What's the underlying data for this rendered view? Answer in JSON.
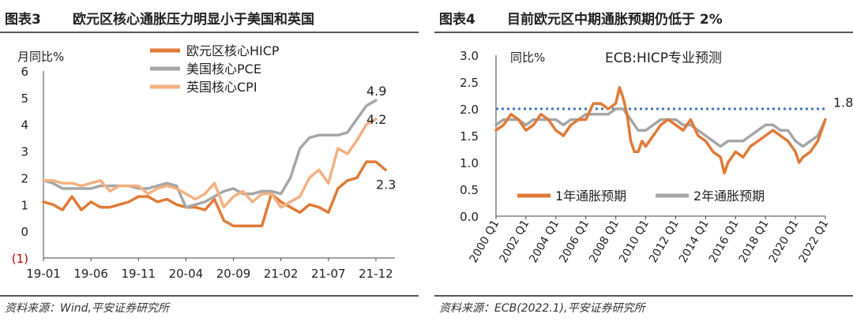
{
  "figures": [
    {
      "number": "图表3",
      "title": "欧元区核心通胀压力明显小于美国和英国",
      "source": "资料来源：Wind,平安证券研究所"
    },
    {
      "number": "图表4",
      "title": "目前欧元区中期通胀预期仍低于 2%",
      "source": "资料来源：ECB(2022.1),平安证券研究所"
    }
  ],
  "chart_data": [
    {
      "type": "line",
      "title": "",
      "ylabel": "月同比%",
      "ylim": [
        -1,
        6
      ],
      "yticks": [
        "(1)",
        "0",
        "1",
        "2",
        "3",
        "4",
        "5",
        "6"
      ],
      "x_tick_labels": [
        "19-01",
        "19-06",
        "19-11",
        "20-04",
        "20-09",
        "21-02",
        "21-07",
        "21-12"
      ],
      "x": [
        "19-01",
        "19-02",
        "19-03",
        "19-04",
        "19-05",
        "19-06",
        "19-07",
        "19-08",
        "19-09",
        "19-10",
        "19-11",
        "19-12",
        "20-01",
        "20-02",
        "20-03",
        "20-04",
        "20-05",
        "20-06",
        "20-07",
        "20-08",
        "20-09",
        "20-10",
        "20-11",
        "20-12",
        "21-01",
        "21-02",
        "21-03",
        "21-04",
        "21-05",
        "21-06",
        "21-07",
        "21-08",
        "21-09",
        "21-10",
        "21-11",
        "21-12",
        "22-01",
        "22-02"
      ],
      "legend_position": "top-center",
      "grid": false,
      "series": [
        {
          "name": "欧元区核心HICP",
          "color": "#E07B39",
          "values": [
            1.1,
            1.0,
            0.8,
            1.3,
            0.8,
            1.1,
            0.9,
            0.9,
            1.0,
            1.1,
            1.3,
            1.3,
            1.1,
            1.2,
            1.0,
            0.9,
            0.9,
            0.8,
            1.2,
            0.4,
            0.2,
            0.2,
            0.2,
            0.2,
            1.4,
            1.1,
            0.9,
            0.7,
            1.0,
            0.9,
            0.7,
            1.6,
            1.9,
            2.0,
            2.6,
            2.6,
            2.3,
            null
          ],
          "end_label": "2.3"
        },
        {
          "name": "美国核心PCE",
          "color": "#A6A6A6",
          "values": [
            1.9,
            1.8,
            1.6,
            1.6,
            1.6,
            1.6,
            1.7,
            1.7,
            1.7,
            1.7,
            1.6,
            1.6,
            1.7,
            1.8,
            1.7,
            0.9,
            1.0,
            1.1,
            1.3,
            1.5,
            1.6,
            1.4,
            1.4,
            1.5,
            1.5,
            1.4,
            2.0,
            3.1,
            3.5,
            3.6,
            3.6,
            3.6,
            3.7,
            4.2,
            4.7,
            4.9,
            null,
            null
          ],
          "end_label": "4.9"
        },
        {
          "name": "英国核心CPI",
          "color": "#F4B183",
          "values": [
            1.9,
            1.9,
            1.8,
            1.8,
            1.7,
            1.8,
            1.9,
            1.5,
            1.7,
            1.7,
            1.7,
            1.4,
            1.6,
            1.7,
            1.6,
            1.4,
            1.2,
            1.4,
            1.8,
            0.9,
            1.3,
            1.5,
            1.1,
            1.4,
            1.4,
            0.9,
            1.1,
            1.3,
            2.0,
            2.3,
            1.8,
            3.1,
            2.9,
            3.4,
            4.0,
            4.2,
            null,
            null
          ],
          "end_label": "4.2"
        }
      ]
    },
    {
      "type": "line",
      "title": "ECB:HICP专业预测",
      "ylabel": "同比%",
      "ylim": [
        0.0,
        3.0
      ],
      "yticks": [
        "0.0",
        "0.5",
        "1.0",
        "1.5",
        "2.0",
        "2.5",
        "3.0"
      ],
      "x_tick_labels": [
        "2000 Q1",
        "2002 Q1",
        "2004 Q1",
        "2006 Q1",
        "2008 Q1",
        "2010 Q1",
        "2012 Q1",
        "2014 Q1",
        "2016 Q1",
        "2018 Q1",
        "2020 Q1",
        "2022 Q1"
      ],
      "x_range": [
        2000,
        2022
      ],
      "legend_position": "bottom-center",
      "grid": false,
      "reference_line": {
        "value": 2.0,
        "color": "#4472C4"
      },
      "series": [
        {
          "name": "1年通胀预期",
          "color": "#E07B39",
          "x": [
            2000,
            2000.5,
            2001,
            2001.5,
            2002,
            2002.5,
            2003,
            2003.5,
            2004,
            2004.5,
            2005,
            2005.5,
            2006,
            2006.5,
            2007,
            2007.5,
            2008,
            2008.25,
            2008.5,
            2008.75,
            2009,
            2009.25,
            2009.5,
            2009.75,
            2010,
            2010.5,
            2011,
            2011.5,
            2012,
            2012.5,
            2013,
            2013.5,
            2014,
            2014.5,
            2015,
            2015.25,
            2015.5,
            2016,
            2016.5,
            2017,
            2017.5,
            2018,
            2018.5,
            2019,
            2019.5,
            2020,
            2020.25,
            2020.5,
            2021,
            2021.5,
            2022
          ],
          "values": [
            1.6,
            1.7,
            1.9,
            1.8,
            1.6,
            1.7,
            1.9,
            1.8,
            1.6,
            1.5,
            1.7,
            1.8,
            1.8,
            2.1,
            2.1,
            2.0,
            2.1,
            2.4,
            2.2,
            1.9,
            1.4,
            1.2,
            1.2,
            1.4,
            1.3,
            1.5,
            1.7,
            1.8,
            1.7,
            1.6,
            1.8,
            1.5,
            1.4,
            1.2,
            1.1,
            0.8,
            1.0,
            1.2,
            1.1,
            1.3,
            1.4,
            1.5,
            1.6,
            1.5,
            1.4,
            1.2,
            1.0,
            1.1,
            1.2,
            1.4,
            1.8
          ]
        },
        {
          "name": "2年通胀预期",
          "color": "#A6A6A6",
          "x": [
            2000,
            2000.5,
            2001,
            2001.5,
            2002,
            2002.5,
            2003,
            2003.5,
            2004,
            2004.5,
            2005,
            2005.5,
            2006,
            2006.5,
            2007,
            2007.5,
            2008,
            2008.5,
            2009,
            2009.5,
            2010,
            2010.5,
            2011,
            2011.5,
            2012,
            2012.5,
            2013,
            2013.5,
            2014,
            2014.5,
            2015,
            2015.5,
            2016,
            2016.5,
            2017,
            2017.5,
            2018,
            2018.5,
            2019,
            2019.5,
            2020,
            2020.5,
            2021,
            2021.5,
            2022
          ],
          "values": [
            1.7,
            1.8,
            1.8,
            1.8,
            1.7,
            1.8,
            1.8,
            1.8,
            1.8,
            1.7,
            1.8,
            1.8,
            1.9,
            1.9,
            1.9,
            1.9,
            2.0,
            2.0,
            1.8,
            1.6,
            1.6,
            1.7,
            1.8,
            1.8,
            1.8,
            1.7,
            1.7,
            1.6,
            1.5,
            1.4,
            1.3,
            1.4,
            1.4,
            1.4,
            1.5,
            1.6,
            1.7,
            1.7,
            1.6,
            1.6,
            1.4,
            1.3,
            1.4,
            1.5,
            1.8
          ]
        }
      ],
      "end_label": "1.8"
    }
  ]
}
